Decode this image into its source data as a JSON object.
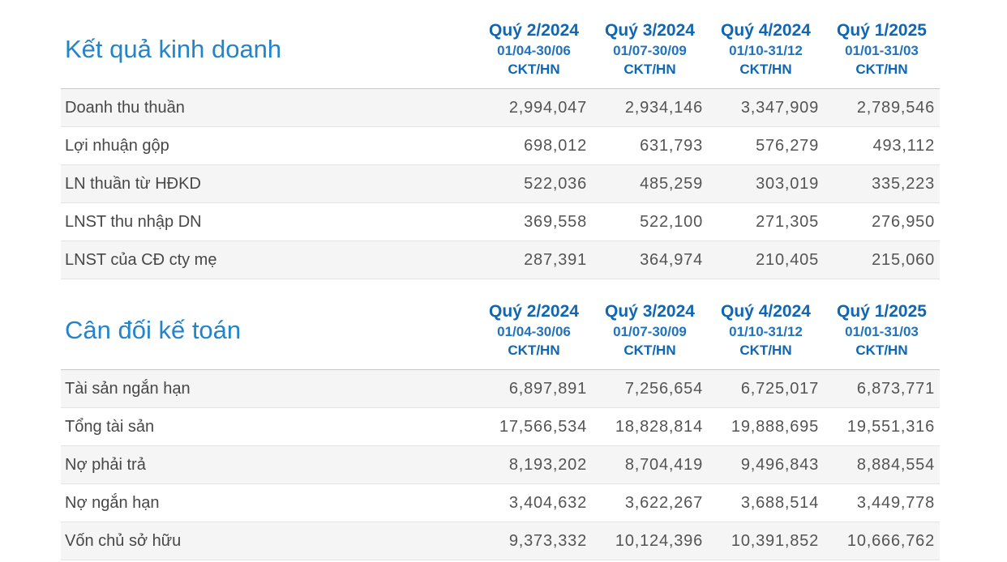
{
  "colors": {
    "section_title_blue": "#2484ca",
    "column_header_blue": "#0f66b2",
    "period_blue": "#2173bd",
    "row_stripe": "#f5f5f5",
    "row_border": "#e3e3e3",
    "header_border": "#c8c8c8",
    "body_text": "#4b4b4b"
  },
  "sections": [
    {
      "title": "Kết quả kinh doanh",
      "columns": [
        {
          "quarter": "Quý 2/2024",
          "period": "01/04-30/06",
          "audit": "CKT/HN"
        },
        {
          "quarter": "Quý 3/2024",
          "period": "01/07-30/09",
          "audit": "CKT/HN"
        },
        {
          "quarter": "Quý 4/2024",
          "period": "01/10-31/12",
          "audit": "CKT/HN"
        },
        {
          "quarter": "Quý 1/2025",
          "period": "01/01-31/03",
          "audit": "CKT/HN"
        }
      ],
      "rows": [
        {
          "label": "Doanh thu thuần",
          "values": [
            "2,994,047",
            "2,934,146",
            "3,347,909",
            "2,789,546"
          ]
        },
        {
          "label": "Lợi nhuận gộp",
          "values": [
            "698,012",
            "631,793",
            "576,279",
            "493,112"
          ]
        },
        {
          "label": "LN thuần từ HĐKD",
          "values": [
            "522,036",
            "485,259",
            "303,019",
            "335,223"
          ]
        },
        {
          "label": "LNST thu nhập DN",
          "values": [
            "369,558",
            "522,100",
            "271,305",
            "276,950"
          ]
        },
        {
          "label": "LNST của CĐ cty mẹ",
          "values": [
            "287,391",
            "364,974",
            "210,405",
            "215,060"
          ]
        }
      ]
    },
    {
      "title": "Cân đối kế toán",
      "columns": [
        {
          "quarter": "Quý 2/2024",
          "period": "01/04-30/06",
          "audit": "CKT/HN"
        },
        {
          "quarter": "Quý 3/2024",
          "period": "01/07-30/09",
          "audit": "CKT/HN"
        },
        {
          "quarter": "Quý 4/2024",
          "period": "01/10-31/12",
          "audit": "CKT/HN"
        },
        {
          "quarter": "Quý 1/2025",
          "period": "01/01-31/03",
          "audit": "CKT/HN"
        }
      ],
      "rows": [
        {
          "label": "Tài sản ngắn hạn",
          "values": [
            "6,897,891",
            "7,256,654",
            "6,725,017",
            "6,873,771"
          ]
        },
        {
          "label": "Tổng tài sản",
          "values": [
            "17,566,534",
            "18,828,814",
            "19,888,695",
            "19,551,316"
          ]
        },
        {
          "label": "Nợ phải trả",
          "values": [
            "8,193,202",
            "8,704,419",
            "9,496,843",
            "8,884,554"
          ]
        },
        {
          "label": "Nợ ngắn hạn",
          "values": [
            "3,404,632",
            "3,622,267",
            "3,688,514",
            "3,449,778"
          ]
        },
        {
          "label": "Vốn chủ sở hữu",
          "values": [
            "9,373,332",
            "10,124,396",
            "10,391,852",
            "10,666,762"
          ]
        }
      ]
    }
  ]
}
